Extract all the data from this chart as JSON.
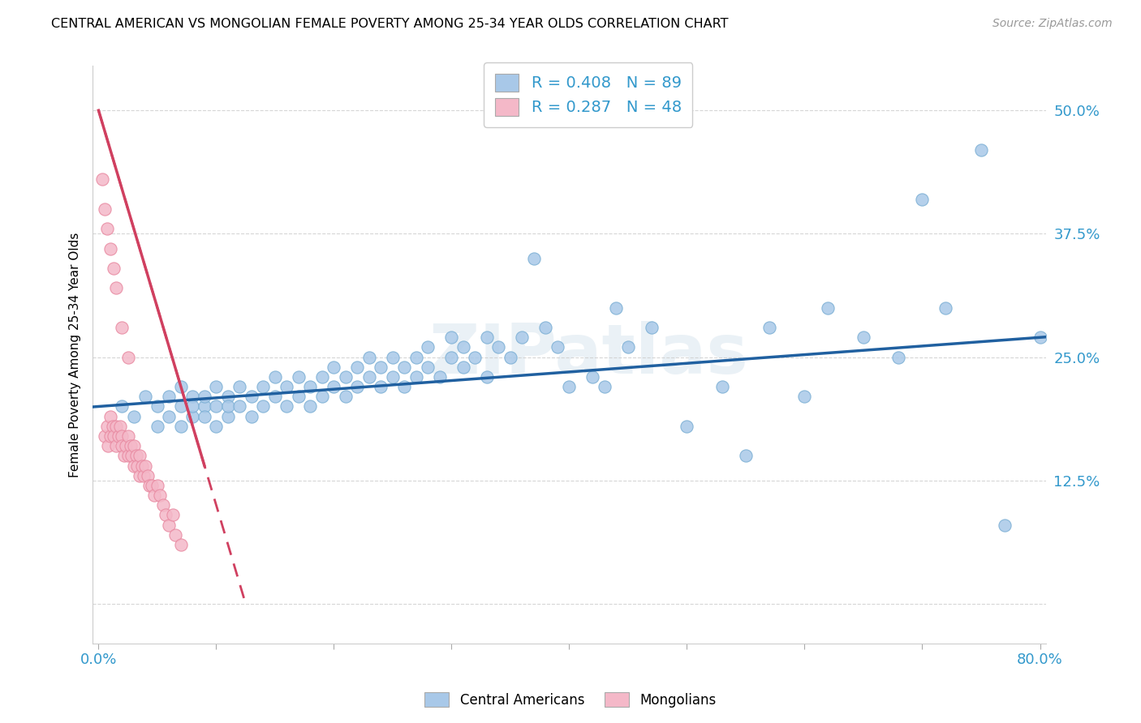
{
  "title": "CENTRAL AMERICAN VS MONGOLIAN FEMALE POVERTY AMONG 25-34 YEAR OLDS CORRELATION CHART",
  "source": "Source: ZipAtlas.com",
  "ylabel": "Female Poverty Among 25-34 Year Olds",
  "xlim": [
    -0.005,
    0.805
  ],
  "ylim": [
    -0.04,
    0.545
  ],
  "xticks": [
    0.0,
    0.1,
    0.2,
    0.3,
    0.4,
    0.5,
    0.6,
    0.7,
    0.8
  ],
  "yticks": [
    0.0,
    0.125,
    0.25,
    0.375,
    0.5
  ],
  "yticklabels": [
    "",
    "12.5%",
    "25.0%",
    "37.5%",
    "50.0%"
  ],
  "blue_color": "#a8c8e8",
  "blue_edge_color": "#7bafd4",
  "pink_color": "#f4b8c8",
  "pink_edge_color": "#e888a0",
  "blue_line_color": "#2060a0",
  "pink_line_color": "#d04060",
  "R_blue": 0.408,
  "N_blue": 89,
  "R_pink": 0.287,
  "N_pink": 48,
  "legend_label_blue": "Central Americans",
  "legend_label_pink": "Mongolians",
  "watermark": "ZIPatlas",
  "blue_x": [
    0.02,
    0.03,
    0.04,
    0.05,
    0.05,
    0.06,
    0.06,
    0.07,
    0.07,
    0.07,
    0.08,
    0.08,
    0.08,
    0.09,
    0.09,
    0.09,
    0.1,
    0.1,
    0.1,
    0.11,
    0.11,
    0.11,
    0.12,
    0.12,
    0.13,
    0.13,
    0.14,
    0.14,
    0.15,
    0.15,
    0.16,
    0.16,
    0.17,
    0.17,
    0.18,
    0.18,
    0.19,
    0.19,
    0.2,
    0.2,
    0.21,
    0.21,
    0.22,
    0.22,
    0.23,
    0.23,
    0.24,
    0.24,
    0.25,
    0.25,
    0.26,
    0.26,
    0.27,
    0.27,
    0.28,
    0.28,
    0.29,
    0.3,
    0.3,
    0.31,
    0.31,
    0.32,
    0.33,
    0.33,
    0.34,
    0.35,
    0.36,
    0.37,
    0.38,
    0.39,
    0.4,
    0.42,
    0.43,
    0.44,
    0.45,
    0.47,
    0.5,
    0.53,
    0.55,
    0.57,
    0.6,
    0.62,
    0.65,
    0.68,
    0.7,
    0.72,
    0.75,
    0.77,
    0.8
  ],
  "blue_y": [
    0.2,
    0.19,
    0.21,
    0.2,
    0.18,
    0.19,
    0.21,
    0.2,
    0.22,
    0.18,
    0.19,
    0.21,
    0.2,
    0.2,
    0.19,
    0.21,
    0.2,
    0.22,
    0.18,
    0.21,
    0.19,
    0.2,
    0.22,
    0.2,
    0.21,
    0.19,
    0.22,
    0.2,
    0.21,
    0.23,
    0.2,
    0.22,
    0.21,
    0.23,
    0.22,
    0.2,
    0.23,
    0.21,
    0.22,
    0.24,
    0.23,
    0.21,
    0.24,
    0.22,
    0.23,
    0.25,
    0.22,
    0.24,
    0.23,
    0.25,
    0.24,
    0.22,
    0.25,
    0.23,
    0.24,
    0.26,
    0.23,
    0.25,
    0.27,
    0.24,
    0.26,
    0.25,
    0.27,
    0.23,
    0.26,
    0.25,
    0.27,
    0.35,
    0.28,
    0.26,
    0.22,
    0.23,
    0.22,
    0.3,
    0.26,
    0.28,
    0.18,
    0.22,
    0.15,
    0.28,
    0.21,
    0.3,
    0.27,
    0.25,
    0.41,
    0.3,
    0.46,
    0.08,
    0.27
  ],
  "pink_x": [
    0.005,
    0.007,
    0.008,
    0.01,
    0.01,
    0.012,
    0.013,
    0.015,
    0.015,
    0.017,
    0.018,
    0.02,
    0.02,
    0.022,
    0.023,
    0.025,
    0.025,
    0.027,
    0.028,
    0.03,
    0.03,
    0.032,
    0.033,
    0.035,
    0.035,
    0.037,
    0.038,
    0.04,
    0.042,
    0.043,
    0.045,
    0.047,
    0.05,
    0.052,
    0.055,
    0.057,
    0.06,
    0.063,
    0.065,
    0.07,
    0.003,
    0.005,
    0.007,
    0.01,
    0.013,
    0.015,
    0.02,
    0.025
  ],
  "pink_y": [
    0.17,
    0.18,
    0.16,
    0.19,
    0.17,
    0.18,
    0.17,
    0.18,
    0.16,
    0.17,
    0.18,
    0.17,
    0.16,
    0.15,
    0.16,
    0.15,
    0.17,
    0.16,
    0.15,
    0.16,
    0.14,
    0.15,
    0.14,
    0.15,
    0.13,
    0.14,
    0.13,
    0.14,
    0.13,
    0.12,
    0.12,
    0.11,
    0.12,
    0.11,
    0.1,
    0.09,
    0.08,
    0.09,
    0.07,
    0.06,
    0.43,
    0.4,
    0.38,
    0.36,
    0.34,
    0.32,
    0.28,
    0.25
  ]
}
